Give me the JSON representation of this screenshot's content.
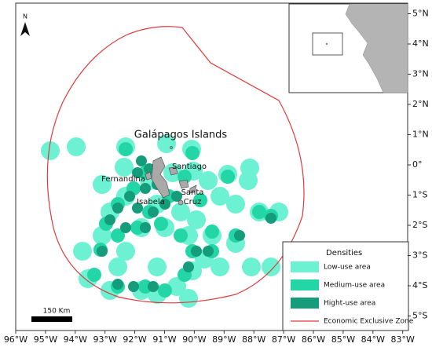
{
  "map": {
    "title": "Galápagos Islands",
    "north": "N",
    "scale_bar": "150 Km",
    "places": [
      "Fernandina",
      "Santiago",
      "Isabela"
    ],
    "santa_cruz_lines": [
      "Santa",
      "Cruz"
    ],
    "lon_ticks": [
      {
        "value": -96,
        "label": "96°W"
      },
      {
        "value": -95,
        "label": "95°W"
      },
      {
        "value": -94,
        "label": "94°W"
      },
      {
        "value": -93,
        "label": "93°W"
      },
      {
        "value": -92,
        "label": "92°W"
      },
      {
        "value": -91,
        "label": "91°W"
      },
      {
        "value": -90,
        "label": "90°W"
      },
      {
        "value": -89,
        "label": "89°W"
      },
      {
        "value": -88,
        "label": "88°W"
      },
      {
        "value": -87,
        "label": "87°W"
      },
      {
        "value": -86,
        "label": "86°W"
      },
      {
        "value": -85,
        "label": "85°W"
      },
      {
        "value": -84,
        "label": "84°W"
      },
      {
        "value": -83,
        "label": "83°W"
      }
    ],
    "lat_ticks": [
      {
        "value": 5,
        "label": "5°N"
      },
      {
        "value": 4,
        "label": "4°N"
      },
      {
        "value": 3,
        "label": "3°N"
      },
      {
        "value": 2,
        "label": "2°N"
      },
      {
        "value": 1,
        "label": "1°N"
      },
      {
        "value": 0,
        "label": "0°"
      },
      {
        "value": -1,
        "label": "1°S"
      },
      {
        "value": -2,
        "label": "2°S"
      },
      {
        "value": -3,
        "label": "3°S"
      },
      {
        "value": -4,
        "label": "4°S"
      },
      {
        "value": -5,
        "label": "5°S"
      }
    ],
    "legend": {
      "title": "Densities",
      "items": [
        {
          "label": "Low-use area",
          "color": "#6cf2d2"
        },
        {
          "label": "Medium-use area",
          "color": "#22d6a6"
        },
        {
          "label": "Hight-use area",
          "color": "#159c7b"
        },
        {
          "label": "Economic Exclusive Zone",
          "color": "#e0393b"
        }
      ]
    }
  }
}
